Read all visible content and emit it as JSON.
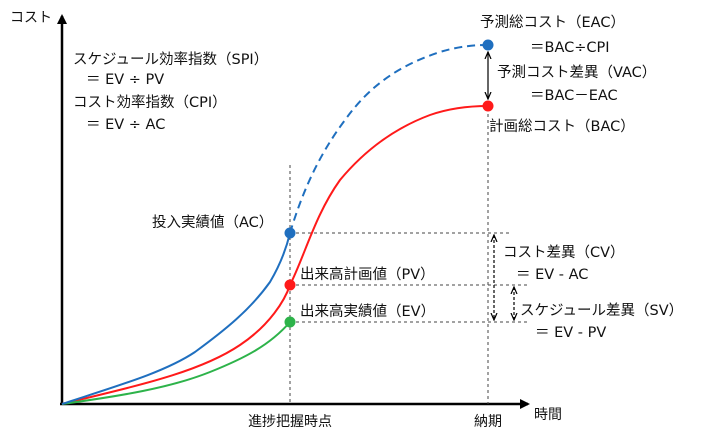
{
  "axes": {
    "y_label": "コスト",
    "x_label": "時間",
    "x_ticks": [
      "進捗把握時点",
      "納期"
    ]
  },
  "formulas": {
    "spi_title": "スケジュール効率指数（SPI）",
    "spi_formula": "＝ EV ÷ PV",
    "cpi_title": "コスト効率指数（CPI）",
    "cpi_formula": "＝ EV ÷ AC",
    "eac_title": "予測総コスト（EAC）",
    "eac_formula": "＝BAC÷CPI",
    "vac_title": "予測コスト差異（VAC）",
    "vac_formula": "＝BAC－EAC",
    "bac_label": "計画総コスト（BAC）",
    "cv_title": "コスト差異（CV）",
    "cv_formula": "＝ EV - AC",
    "sv_title": "スケジュール差異（SV）",
    "sv_formula": "＝ EV - PV"
  },
  "points": {
    "ac_label": "投入実績値（AC）",
    "pv_label": "出来高計画値（PV）",
    "ev_label": "出来高実績値（EV）"
  },
  "colors": {
    "ac_line": "#1f6fbf",
    "pv_line": "#ff1a1a",
    "ev_line": "#2db34a",
    "axis": "#000000",
    "guide": "#444444"
  }
}
